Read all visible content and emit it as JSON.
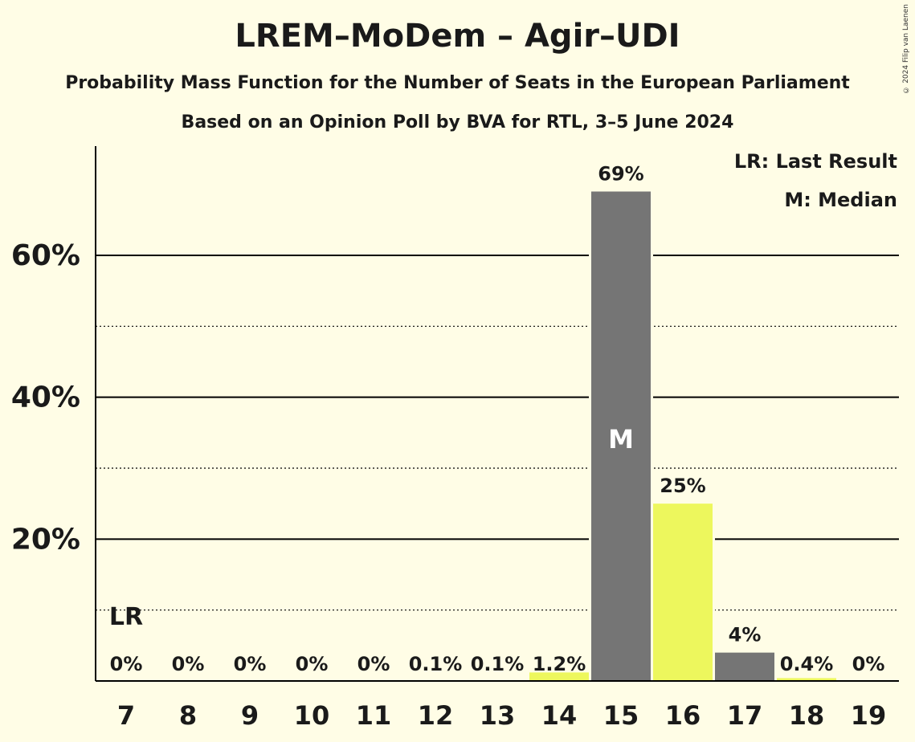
{
  "title": "LREM–MoDem – Agir–UDI",
  "subtitle": "Probability Mass Function for the Number of Seats in the European Parliament",
  "subtitle2": "Based on an Opinion Poll by BVA for RTL, 3–5 June 2024",
  "copyright": "© 2024 Filip van Laenen",
  "legend": {
    "lr": "LR: Last Result",
    "m": "M: Median"
  },
  "chart_data": {
    "type": "bar",
    "categories": [
      "7",
      "8",
      "9",
      "10",
      "11",
      "12",
      "13",
      "14",
      "15",
      "16",
      "17",
      "18",
      "19"
    ],
    "values": [
      0,
      0,
      0,
      0,
      0,
      0.1,
      0.1,
      1.2,
      69,
      25,
      4,
      0.4,
      0
    ],
    "labels": [
      "0%",
      "0%",
      "0%",
      "0%",
      "0%",
      "0.1%",
      "0.1%",
      "1.2%",
      "69%",
      "25%",
      "4%",
      "0.4%",
      "0%"
    ],
    "colors": [
      "#757575",
      "#757575",
      "#757575",
      "#757575",
      "#757575",
      "#edf75d",
      "#757575",
      "#edf75d",
      "#757575",
      "#edf75d",
      "#757575",
      "#edf75d",
      "#757575"
    ],
    "yticks": [
      20,
      40,
      60
    ],
    "ytick_labels": [
      "20%",
      "40%",
      "60%"
    ],
    "minor_gridlines": [
      10,
      30,
      50
    ],
    "ylim": [
      0,
      75
    ],
    "last_result_category": "7",
    "last_result_marker": "LR",
    "median_category": "15",
    "median_marker": "M"
  }
}
